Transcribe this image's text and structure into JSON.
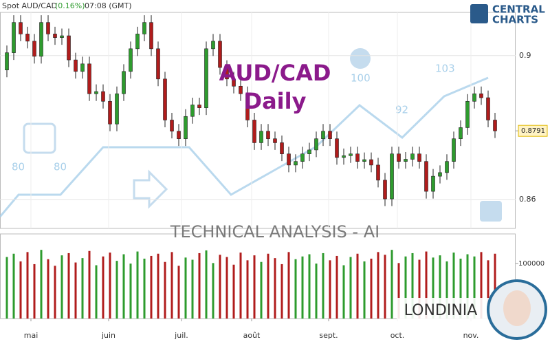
{
  "header": {
    "symbol": "Spot AUD/CAD",
    "change": "(0.16%)",
    "time": "07:08 (GMT)"
  },
  "brand": {
    "line1": "CENTRAL",
    "line2": "CHARTS"
  },
  "watermark": {
    "text": "TECHNICAL  ANALYSIS - AI",
    "numbers": [
      "80",
      "80",
      "100",
      "92",
      "103"
    ],
    "signature": "LONDINIA"
  },
  "chart_data": {
    "type": "candlestick",
    "title": "AUD/CAD",
    "subtitle": "Daily",
    "up_color": "#2e9b2e",
    "down_color": "#b01c1c",
    "x": [
      1,
      2,
      3,
      4,
      5,
      6,
      7,
      8,
      9,
      10,
      11,
      12,
      13,
      14,
      15,
      16,
      17,
      18,
      19,
      20,
      21,
      22,
      23,
      24,
      25,
      26,
      27,
      28,
      29,
      30,
      31,
      32,
      33,
      34,
      35,
      36,
      37,
      38,
      39,
      40,
      41,
      42,
      43,
      44,
      45,
      46,
      47,
      48,
      49,
      50,
      51,
      52,
      53,
      54,
      55,
      56,
      57,
      58,
      59,
      60,
      61,
      62,
      63,
      64,
      65,
      66,
      67,
      68,
      69,
      70,
      71,
      72
    ],
    "open": [
      0.896,
      0.9008,
      0.9092,
      0.906,
      0.904,
      0.8998,
      0.9092,
      0.906,
      0.905,
      0.9055,
      0.8988,
      0.8956,
      0.8977,
      0.8894,
      0.89,
      0.8873,
      0.881,
      0.8894,
      0.8956,
      0.9019,
      0.906,
      0.9092,
      0.9019,
      0.8935,
      0.8821,
      0.879,
      0.8769,
      0.8831,
      0.8863,
      0.8855,
      0.9019,
      0.904,
      0.8967,
      0.8935,
      0.8915,
      0.8894,
      0.8821,
      0.8758,
      0.879,
      0.8769,
      0.8758,
      0.8727,
      0.8696,
      0.8706,
      0.8727,
      0.8738,
      0.8769,
      0.879,
      0.8769,
      0.8717,
      0.8722,
      0.8727,
      0.8706,
      0.8711,
      0.8696,
      0.8654,
      0.8602,
      0.8727,
      0.8706,
      0.8712,
      0.8727,
      0.8706,
      0.8623,
      0.8665,
      0.8675,
      0.8706,
      0.8769,
      0.88,
      0.8873,
      0.8894,
      0.8883,
      0.8821
    ],
    "high": [
      0.9028,
      0.9112,
      0.9112,
      0.908,
      0.906,
      0.9112,
      0.9112,
      0.908,
      0.9075,
      0.9075,
      0.9008,
      0.8997,
      0.8997,
      0.892,
      0.892,
      0.8893,
      0.8914,
      0.8976,
      0.9039,
      0.908,
      0.9112,
      0.9112,
      0.9039,
      0.8955,
      0.8841,
      0.881,
      0.8851,
      0.8883,
      0.8883,
      0.9039,
      0.906,
      0.906,
      0.8987,
      0.8955,
      0.8935,
      0.8914,
      0.8841,
      0.881,
      0.881,
      0.8789,
      0.8778,
      0.8747,
      0.8726,
      0.8747,
      0.8758,
      0.8789,
      0.881,
      0.881,
      0.8789,
      0.8742,
      0.8747,
      0.8747,
      0.8731,
      0.8731,
      0.8716,
      0.8674,
      0.8747,
      0.8747,
      0.8732,
      0.8747,
      0.8747,
      0.8726,
      0.8685,
      0.8695,
      0.8726,
      0.8789,
      0.882,
      0.8893,
      0.8914,
      0.8914,
      0.8903,
      0.8841
    ],
    "low": [
      0.894,
      0.8988,
      0.904,
      0.902,
      0.8978,
      0.8978,
      0.904,
      0.903,
      0.903,
      0.8968,
      0.8936,
      0.8936,
      0.8874,
      0.8874,
      0.8853,
      0.879,
      0.879,
      0.8874,
      0.8936,
      0.8999,
      0.904,
      0.8999,
      0.8915,
      0.8801,
      0.877,
      0.8749,
      0.8749,
      0.8811,
      0.8835,
      0.8835,
      0.8999,
      0.8947,
      0.8915,
      0.8895,
      0.8874,
      0.8801,
      0.8738,
      0.8738,
      0.8749,
      0.8738,
      0.8707,
      0.8676,
      0.8676,
      0.8686,
      0.8707,
      0.8718,
      0.8749,
      0.8749,
      0.8697,
      0.8697,
      0.8702,
      0.8686,
      0.8686,
      0.8676,
      0.8634,
      0.8582,
      0.8582,
      0.8686,
      0.8686,
      0.8692,
      0.8686,
      0.8603,
      0.8603,
      0.8645,
      0.8655,
      0.8686,
      0.8749,
      0.878,
      0.8853,
      0.8863,
      0.8801,
      0.8771
    ],
    "close": [
      0.9008,
      0.9092,
      0.906,
      0.904,
      0.8998,
      0.9092,
      0.906,
      0.905,
      0.9055,
      0.8988,
      0.8956,
      0.8977,
      0.8894,
      0.89,
      0.8873,
      0.881,
      0.8894,
      0.8956,
      0.9019,
      0.906,
      0.9092,
      0.9019,
      0.8935,
      0.8821,
      0.879,
      0.8769,
      0.8831,
      0.8863,
      0.8855,
      0.9019,
      0.904,
      0.8967,
      0.8935,
      0.8915,
      0.8894,
      0.8821,
      0.8758,
      0.879,
      0.8769,
      0.8758,
      0.8727,
      0.8696,
      0.8706,
      0.8727,
      0.8738,
      0.8769,
      0.879,
      0.8769,
      0.8717,
      0.8722,
      0.8727,
      0.8706,
      0.8711,
      0.8696,
      0.8654,
      0.8602,
      0.8727,
      0.8706,
      0.8712,
      0.8727,
      0.8706,
      0.8623,
      0.8665,
      0.8675,
      0.8706,
      0.8769,
      0.88,
      0.8873,
      0.8894,
      0.8883,
      0.8821,
      0.8791
    ],
    "last_price": 0.8791,
    "last_price_label": "0.8791",
    "xlim": [
      0,
      75
    ],
    "xticks": [
      {
        "value": 4.5,
        "label": "mai"
      },
      {
        "value": 15.8,
        "label": "juin"
      },
      {
        "value": 26.4,
        "label": "juil."
      },
      {
        "value": 36.6,
        "label": "août"
      },
      {
        "value": 47.8,
        "label": "sept."
      },
      {
        "value": 57.8,
        "label": "oct."
      },
      {
        "value": 68.5,
        "label": "nov."
      }
    ],
    "ylim": [
      0.852,
      0.912
    ],
    "yticks": [
      0.9,
      0.86
    ],
    "grid": true,
    "volume": {
      "values": [
        112000,
        118000,
        104000,
        121000,
        99000,
        125000,
        108000,
        96000,
        115000,
        119000,
        102000,
        110000,
        123000,
        97000,
        113000,
        120000,
        105000,
        117000,
        100000,
        122000,
        109000,
        114000,
        118000,
        103000,
        121000,
        96000,
        111000,
        107000,
        119000,
        124000,
        101000,
        116000,
        112000,
        98000,
        120000,
        106000,
        115000,
        103000,
        118000,
        110000,
        99000,
        121000,
        108000,
        113000,
        117000,
        100000,
        119000,
        106000,
        114000,
        97000,
        112000,
        118000,
        104000,
        109000,
        121000,
        116000,
        125000,
        101000,
        113000,
        119000,
        107000,
        122000,
        111000,
        115000,
        104000,
        120000,
        109000,
        117000,
        113000,
        121000,
        106000,
        118000
      ],
      "ylim": [
        0,
        154000
      ],
      "yticks": [
        100000
      ]
    }
  }
}
